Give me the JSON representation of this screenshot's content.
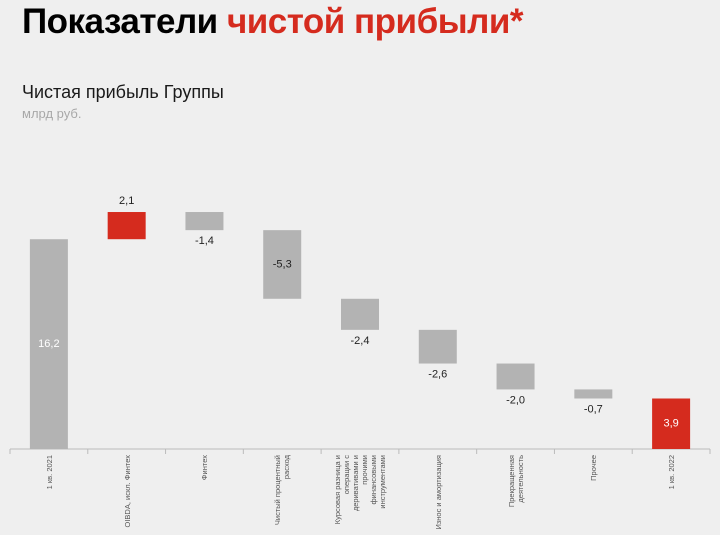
{
  "chart_data": {
    "type": "waterfall",
    "heading": "Показатели",
    "heading_highlight": "чистой прибыли*",
    "title": "Чистая прибыль Группы",
    "subtitle": "млрд руб.",
    "categories": [
      "1 кв. 2021",
      "OIBDA, искл. Финтех",
      "Финтех",
      "Чистый процентный расход",
      "Курсовая разница и операции с деривативами и прочими финансовыми инструментами",
      "Износ и амортизация",
      "Прекращенная деятельность",
      "Прочее",
      "1 кв. 2022"
    ],
    "values": [
      16.2,
      2.1,
      -1.4,
      -5.3,
      -2.4,
      -2.6,
      -2.0,
      -0.7,
      3.9
    ],
    "value_labels": [
      "16,2",
      "2,1",
      "-1,4",
      "-5,3",
      "-2,4",
      "-2,6",
      "-2,0",
      "-0,7",
      "3,9"
    ],
    "measure": [
      "absolute",
      "relative",
      "relative",
      "relative",
      "relative",
      "relative",
      "relative",
      "relative",
      "total"
    ],
    "colors": [
      "#b3b3b3",
      "#d52b1e",
      "#b3b3b3",
      "#b3b3b3",
      "#b3b3b3",
      "#b3b3b3",
      "#b3b3b3",
      "#b3b3b3",
      "#d52b1e"
    ],
    "ylim": [
      0,
      20
    ]
  }
}
